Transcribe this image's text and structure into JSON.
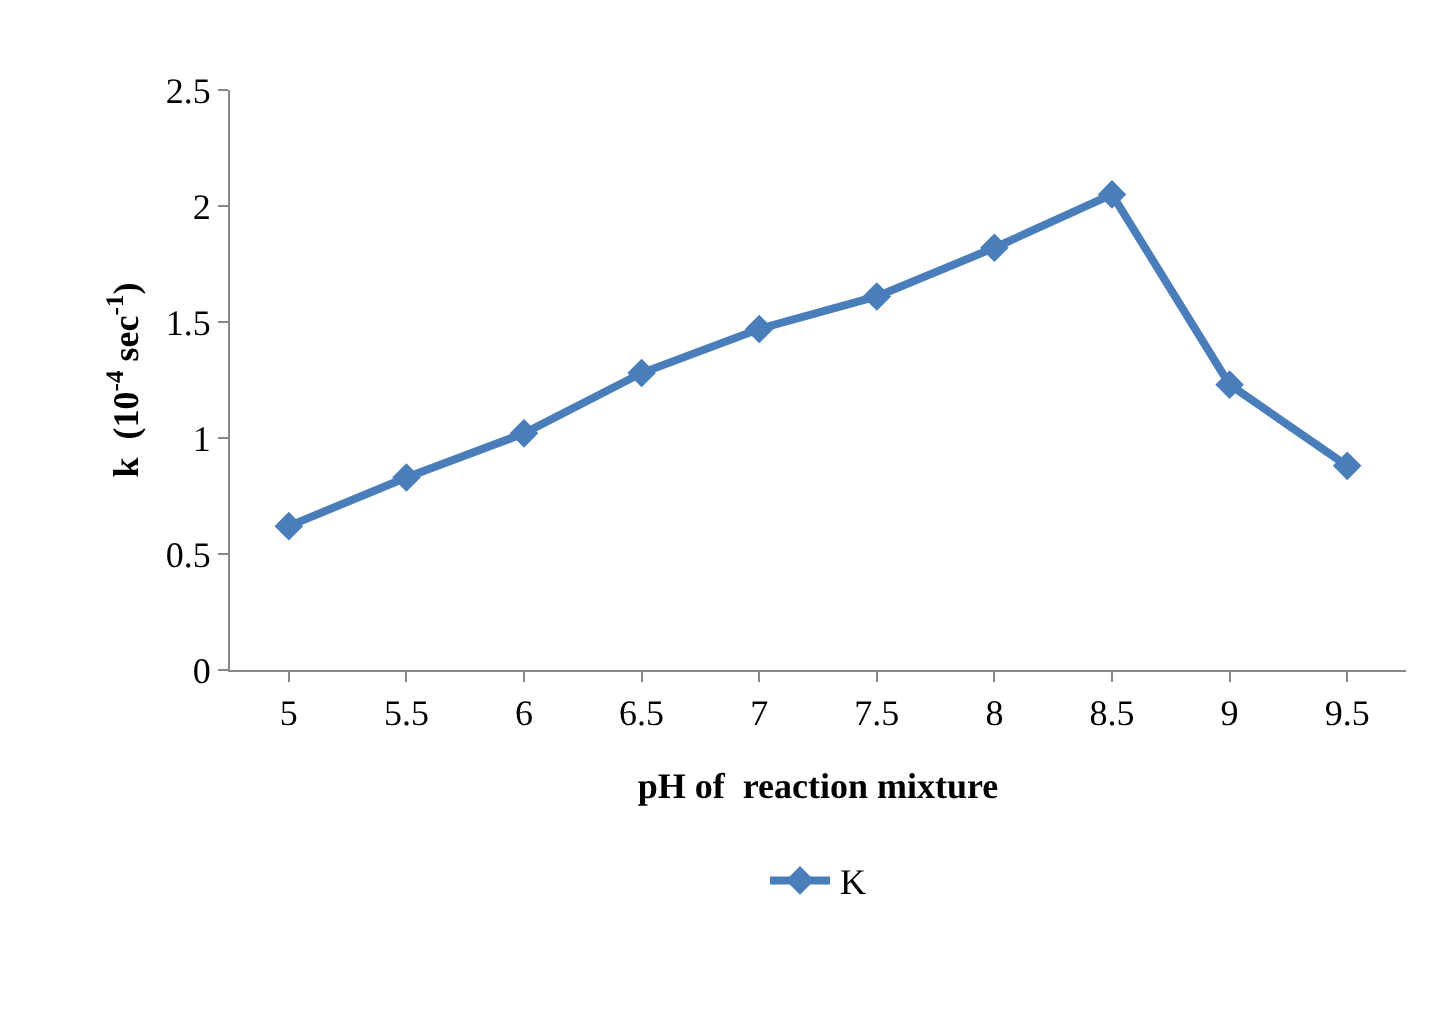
{
  "chart_data": {
    "type": "line",
    "xlabel": "pH of  reaction mixture",
    "ylabel": "k  (10$^{-4}$ sec$^{-1}$)",
    "categories": [
      "5",
      "5.5",
      "6",
      "6.5",
      "7",
      "7.5",
      "8",
      "8.5",
      "9",
      "9.5"
    ],
    "series": [
      {
        "name": "K",
        "color": "#4a7ebb",
        "values": [
          0.62,
          0.83,
          1.02,
          1.28,
          1.47,
          1.61,
          1.82,
          2.05,
          1.23,
          0.88
        ]
      }
    ],
    "ylim": [
      0,
      2.5
    ],
    "yticks": [
      0,
      0.5,
      1,
      1.5,
      2,
      2.5
    ],
    "grid": false,
    "legend": "bottom",
    "marker": "diamond",
    "line_style": "solid"
  }
}
